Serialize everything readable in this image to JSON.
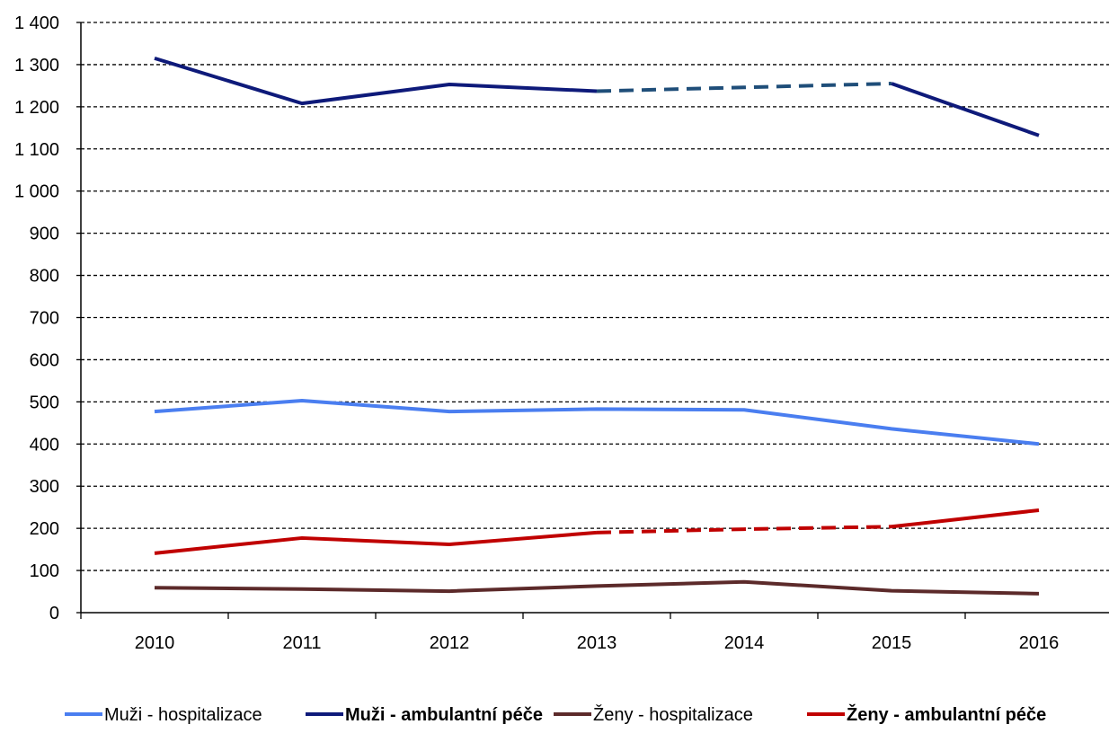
{
  "chart_data": {
    "type": "line",
    "x": [
      "2010",
      "2011",
      "2012",
      "2013",
      "2014",
      "2015",
      "2016"
    ],
    "ylim": [
      0,
      1400
    ],
    "yticks": [
      0,
      100,
      200,
      300,
      400,
      500,
      600,
      700,
      800,
      900,
      1000,
      1100,
      1200,
      1300,
      1400
    ],
    "ytick_labels": [
      "0",
      "100",
      "200",
      "300",
      "400",
      "500",
      "600",
      "700",
      "800",
      "900",
      "1 000",
      "1 100",
      "1 200",
      "1 300",
      "1 400"
    ],
    "grid": "horizontal dashed",
    "legend_position": "bottom",
    "dashed_segments": {
      "from": "2013",
      "to": "2015"
    },
    "series": [
      {
        "name": "Muži - hospitalizace",
        "color": "#4a7ef0",
        "bold": false,
        "values": [
          477,
          503,
          477,
          483,
          481,
          436,
          400
        ]
      },
      {
        "name": "Muži - ambulantní péče",
        "color": "#0e1a7a",
        "dash_color": "#1f4e79",
        "bold": true,
        "dashed_middle": true,
        "values": [
          1315,
          1208,
          1253,
          1237,
          1246,
          1255,
          1132
        ]
      },
      {
        "name": "Ženy - hospitalizace",
        "color": "#5c2a2a",
        "bold": false,
        "values": [
          59,
          56,
          51,
          63,
          73,
          52,
          45
        ]
      },
      {
        "name": "Ženy - ambulantní péče",
        "color": "#c00000",
        "bold": true,
        "dashed_middle": true,
        "values": [
          141,
          177,
          162,
          190,
          198,
          204,
          243
        ]
      }
    ]
  }
}
